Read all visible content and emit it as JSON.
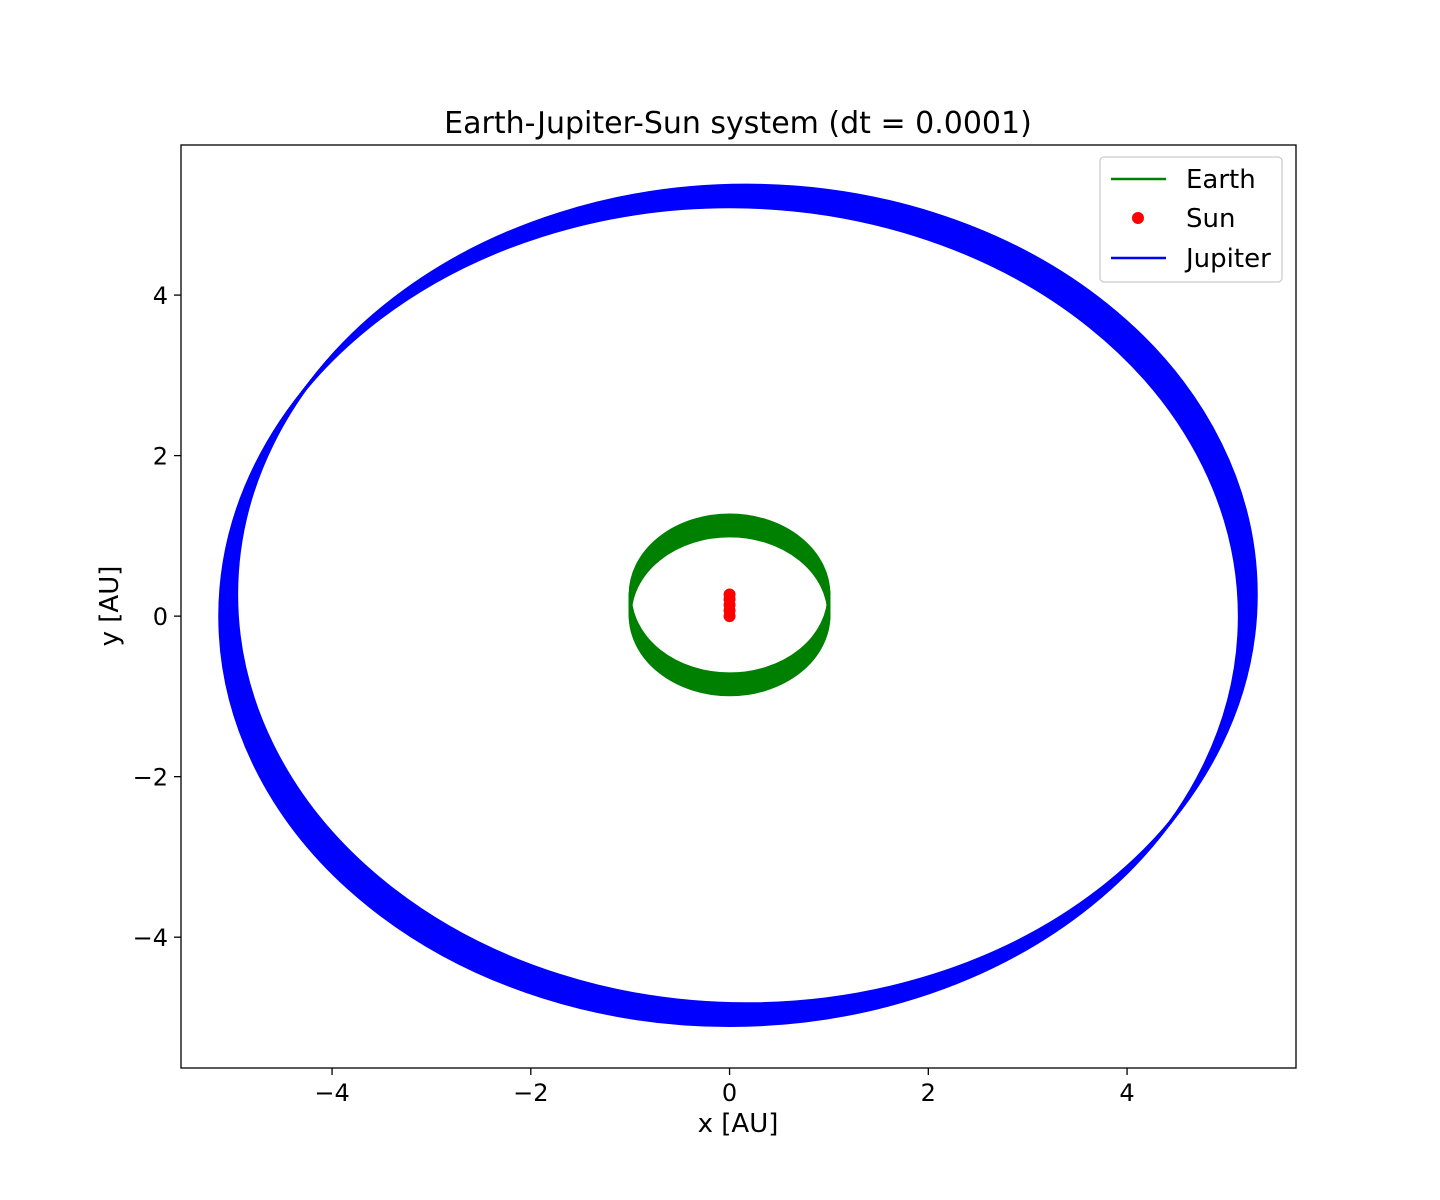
{
  "chart_data": {
    "type": "line",
    "title": "Earth-Jupiter-Sun system (dt = 0.0001)",
    "xlabel": "x [AU]",
    "ylabel": "y [AU]",
    "xlim": [
      -5.52,
      5.7
    ],
    "ylim": [
      -5.63,
      5.87
    ],
    "xticks": [
      -4,
      -2,
      0,
      2,
      4
    ],
    "yticks": [
      -4,
      -2,
      0,
      2,
      4
    ],
    "xtick_labels": [
      "−4",
      "−2",
      "0",
      "2",
      "4"
    ],
    "ytick_labels": [
      "−4",
      "−2",
      "0",
      "2",
      "4"
    ],
    "grid": false,
    "legend": "top-right",
    "series": [
      {
        "name": "Earth",
        "style": "line",
        "color": "#008000",
        "orbit": {
          "center_x_start": 0.0,
          "center_y_start": 0.01,
          "center_x_end": 0.0,
          "center_y_end": 0.27,
          "semi_x": 1.0,
          "semi_y": 0.99
        }
      },
      {
        "name": "Sun",
        "style": "point",
        "color": "#ff0000",
        "points": {
          "x": [
            0.0,
            0.0,
            0.0,
            0.0,
            0.0
          ],
          "y": [
            0.0,
            0.07,
            0.14,
            0.21,
            0.27
          ]
        }
      },
      {
        "name": "Jupiter",
        "style": "line",
        "color": "#0000ff",
        "orbit": {
          "center_x_start": 0.0,
          "center_y_start": 0.0,
          "center_x_end": 0.17,
          "center_y_end": 0.27,
          "semi_x": 5.13,
          "semi_y": 5.1
        }
      }
    ]
  }
}
